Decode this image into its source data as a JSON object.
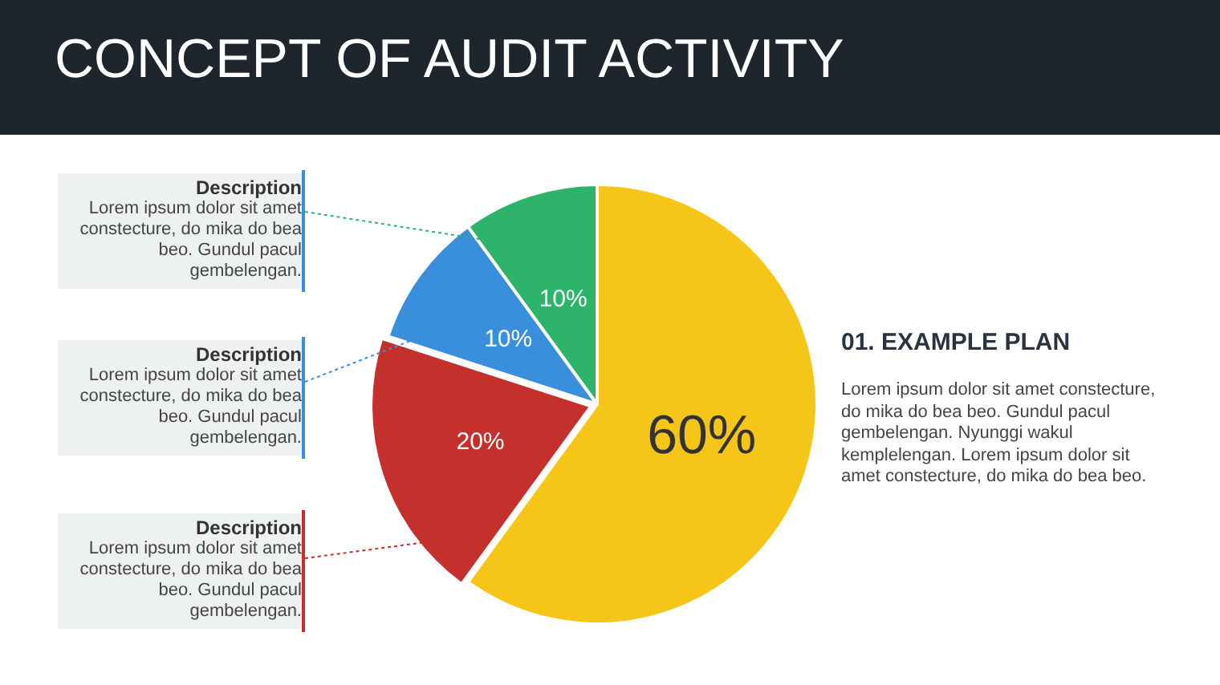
{
  "chart_data": {
    "type": "pie",
    "title": "CONCEPT OF AUDIT ACTIVITY",
    "categories": [
      null,
      null,
      null,
      null
    ],
    "values": [
      60,
      20,
      10,
      10
    ],
    "value_labels": [
      "60%",
      "20%",
      "10%",
      "10%"
    ],
    "colors": [
      "#f5c518",
      "#c4302b",
      "#3a8fdc",
      "#2eb36b"
    ],
    "annotations": [
      "Description",
      "Lorem ipsum dolor sit amet constecture, do mika do bea beo. Gundul pacul gembelengan.",
      "Description",
      "Lorem ipsum dolor sit amet constecture, do mika do bea beo. Gundul pacul gembelengan.",
      "Description",
      "Lorem ipsum dolor sit amet constecture, do mika do bea beo. Gundul pacul gembelengan.",
      "01. EXAMPLE PLAN",
      "Lorem ipsum dolor sit amet constecture, do mika do bea beo. Gundul pacul gembelengan. Nyunggi wakul kemplelengan. Lorem ipsum dolor sit amet constecture, do mika do bea beo."
    ]
  }
}
